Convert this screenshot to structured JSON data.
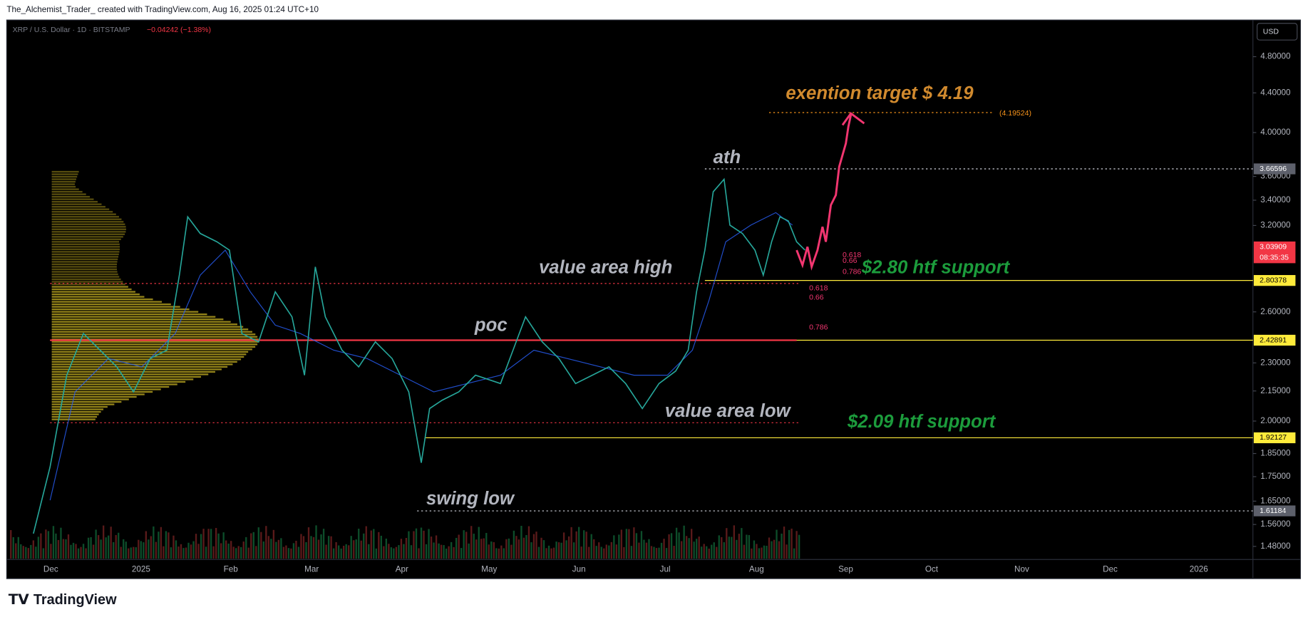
{
  "header": {
    "author_line": "The_Alchemist_Trader_ created with TradingView.com, Aug 16, 2025 01:24 UTC+10"
  },
  "symbol": {
    "name": "XRP / U.S. Dollar · 1D · BITSTAMP",
    "change": "−0.04242 (−1.38%)"
  },
  "currency": "USD",
  "price_axis": {
    "scale": "log",
    "ticks": [
      {
        "value": 4.8,
        "label": "4.80000"
      },
      {
        "value": 4.4,
        "label": "4.40000"
      },
      {
        "value": 4,
        "label": "4.00000"
      },
      {
        "value": 3.6,
        "label": "3.60000"
      },
      {
        "value": 3.4,
        "label": "3.40000"
      },
      {
        "value": 3.2,
        "label": "3.20000"
      },
      {
        "value": 2.6,
        "label": "2.60000"
      },
      {
        "value": 2.3,
        "label": "2.30000"
      },
      {
        "value": 2.15,
        "label": "2.15000"
      },
      {
        "value": 2,
        "label": "2.00000"
      },
      {
        "value": 1.85,
        "label": "1.85000"
      },
      {
        "value": 1.75,
        "label": "1.75000"
      },
      {
        "value": 1.65,
        "label": "1.65000"
      },
      {
        "value": 1.56,
        "label": "1.56000"
      },
      {
        "value": 1.48,
        "label": "1.48000"
      }
    ],
    "markers": [
      3.66596,
      3.03909,
      2.80378,
      2.42891,
      1.92127,
      1.61184
    ],
    "countdown": "08:35:35"
  },
  "time_axis": [
    "Dec",
    "2025",
    "Feb",
    "Mar",
    "Apr",
    "May",
    "Jun",
    "Jul",
    "Aug",
    "Sep",
    "Oct",
    "Nov",
    "Dec",
    "2026"
  ],
  "annotations": {
    "target": "exention target $ 4.19",
    "target_value": "(4.19524)",
    "ath": "ath",
    "value_area_high": "value area high",
    "support_high": "$2.80 htf support",
    "poc": "poc",
    "value_area_low": "value area low",
    "support_low": "$2.09 htf support",
    "swing_low": "swing low"
  },
  "fib_labels": [
    "0.618",
    "0.66",
    "0.786",
    "0.618",
    "0.66",
    "0.786"
  ],
  "footer": "TradingView"
}
